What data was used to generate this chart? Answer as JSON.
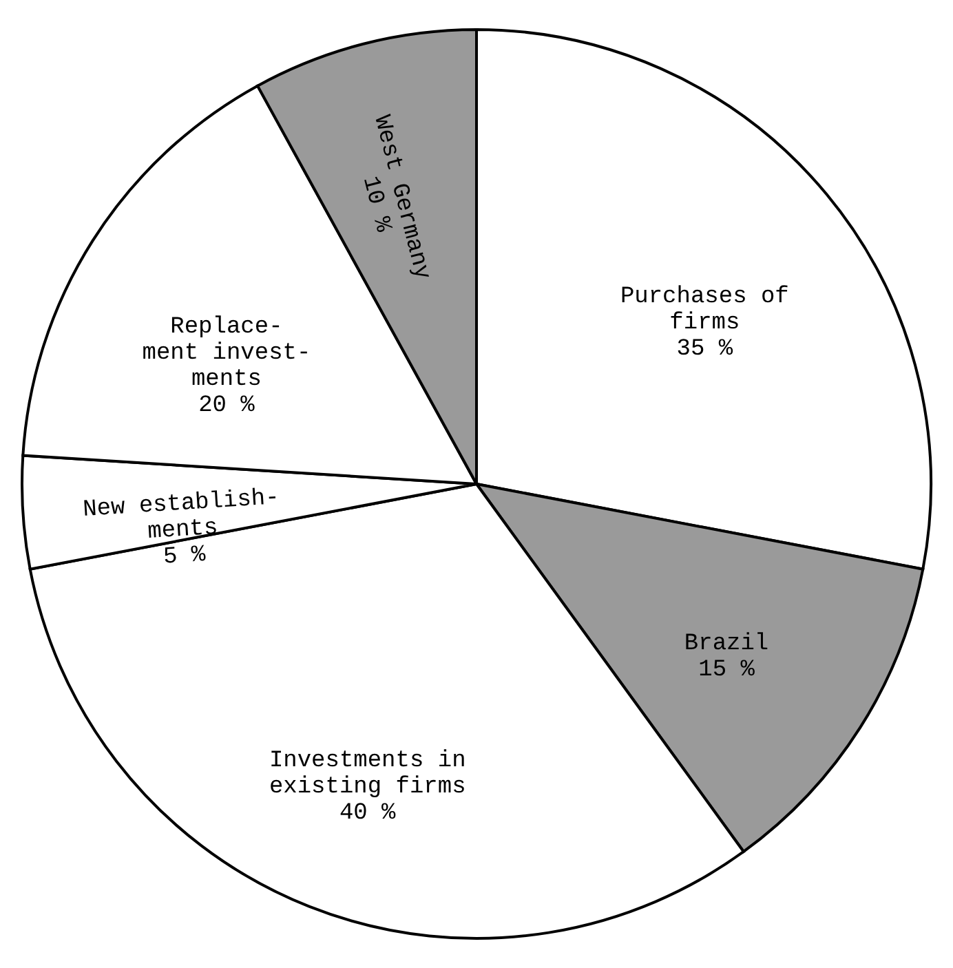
{
  "chart_data": {
    "type": "pie",
    "categories": [
      "Purchases of\nfirms",
      "Brazil",
      "Investments in\nexisting firms",
      "New establish-\nments",
      "Replace-\nment invest-\nments",
      "West Germany"
    ],
    "values": [
      35,
      15,
      40,
      5,
      20,
      10
    ],
    "value_labels": [
      "35 %",
      "15 %",
      "40 %",
      "5 %",
      "20 %",
      "10 %"
    ],
    "colors": [
      "#ffffff",
      "#9a9a9a",
      "#ffffff",
      "#ffffff",
      "#ffffff",
      "#9a9a9a"
    ],
    "legend": false
  }
}
